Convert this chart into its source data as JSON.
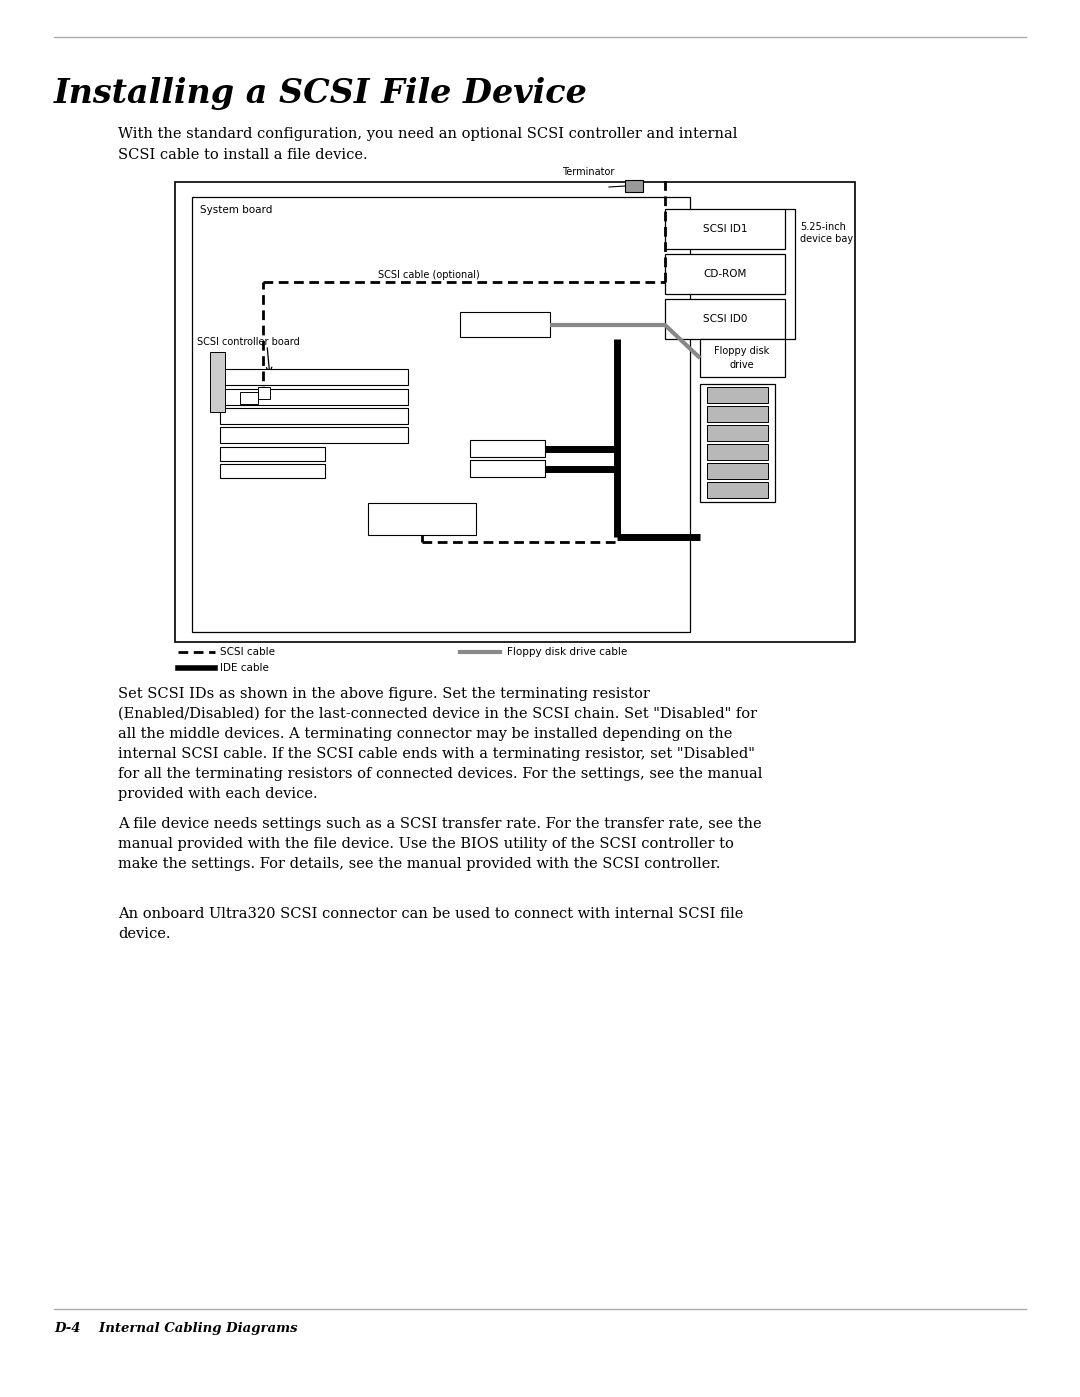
{
  "title": "Installing a SCSI File Device",
  "subtitle": "With the standard configuration, you need an optional SCSI controller and internal\nSCSI cable to install a file device.",
  "paragraph1": "Set SCSI IDs as shown in the above figure. Set the terminating resistor\n(Enabled/Disabled) for the last-connected device in the SCSI chain. Set \"Disabled\" for\nall the middle devices. A terminating connector may be installed depending on the\ninternal SCSI cable. If the SCSI cable ends with a terminating resistor, set \"Disabled\"\nfor all the terminating resistors of connected devices. For the settings, see the manual\nprovided with each device.",
  "paragraph2": "A file device needs settings such as a SCSI transfer rate. For the transfer rate, see the\nmanual provided with the file device. Use the BIOS utility of the SCSI controller to\nmake the settings. For details, see the manual provided with the SCSI controller.",
  "paragraph3": "An onboard Ultra320 SCSI connector can be used to connect with internal SCSI file\ndevice.",
  "footer": "D-4    Internal Cabling Diagrams",
  "bg_color": "#ffffff",
  "text_color": "#000000"
}
